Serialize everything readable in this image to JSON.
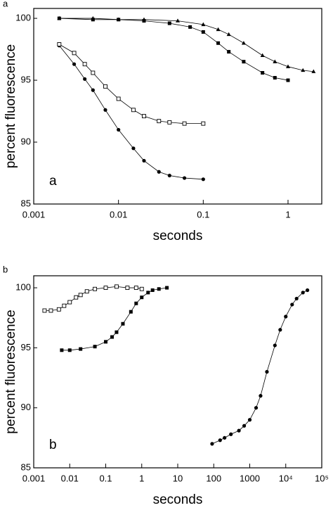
{
  "chart_data": [
    {
      "type": "scatter",
      "panel_label": "a",
      "inner_label": "a",
      "x_label": "seconds",
      "y_label": "percent fluorescence",
      "xscale": "log",
      "xlim": [
        0.001,
        2.5
      ],
      "xticks": [
        0.001,
        0.01,
        0.1,
        1
      ],
      "ylim": [
        85,
        100.8
      ],
      "yticks": [
        85,
        90,
        95,
        100
      ],
      "color": "#000000",
      "series": [
        {
          "marker": "filled-circle",
          "x": [
            0.002,
            0.003,
            0.004,
            0.005,
            0.007,
            0.01,
            0.015,
            0.02,
            0.03,
            0.04,
            0.06,
            0.1
          ],
          "values": [
            97.8,
            96.3,
            95.1,
            94.2,
            92.6,
            91.0,
            89.5,
            88.5,
            87.6,
            87.3,
            87.1,
            87.0
          ]
        },
        {
          "marker": "open-square",
          "x": [
            0.002,
            0.003,
            0.004,
            0.005,
            0.007,
            0.01,
            0.015,
            0.02,
            0.03,
            0.04,
            0.06,
            0.1
          ],
          "values": [
            97.9,
            97.2,
            96.3,
            95.6,
            94.5,
            93.5,
            92.6,
            92.1,
            91.7,
            91.6,
            91.5,
            91.5
          ]
        },
        {
          "marker": "filled-square",
          "x": [
            0.002,
            0.005,
            0.01,
            0.02,
            0.04,
            0.07,
            0.1,
            0.15,
            0.2,
            0.3,
            0.5,
            0.7,
            1
          ],
          "values": [
            100,
            99.9,
            99.9,
            99.8,
            99.6,
            99.3,
            98.9,
            98.0,
            97.3,
            96.5,
            95.6,
            95.2,
            95.0
          ]
        },
        {
          "marker": "triangle",
          "x": [
            0.002,
            0.005,
            0.01,
            0.02,
            0.05,
            0.1,
            0.15,
            0.2,
            0.3,
            0.5,
            0.7,
            1,
            1.5,
            2
          ],
          "values": [
            100,
            100,
            99.9,
            99.9,
            99.8,
            99.5,
            99.1,
            98.7,
            98.0,
            97.0,
            96.5,
            96.1,
            95.8,
            95.7
          ]
        }
      ]
    },
    {
      "type": "scatter",
      "panel_label": "b",
      "inner_label": "b",
      "x_label": "seconds",
      "y_label": "percent fluorescence",
      "xscale": "log",
      "xlim": [
        0.001,
        100000
      ],
      "xticks": [
        0.001,
        0.01,
        0.1,
        1,
        10,
        100,
        1000,
        {
          "value": 10000,
          "label": "10⁴"
        },
        {
          "value": 100000,
          "label": "10⁵"
        }
      ],
      "ylim": [
        85,
        101
      ],
      "yticks": [
        85,
        90,
        95,
        100
      ],
      "color": "#000000",
      "series": [
        {
          "marker": "open-square",
          "x": [
            0.002,
            0.003,
            0.005,
            0.007,
            0.01,
            0.015,
            0.02,
            0.03,
            0.05,
            0.1,
            0.2,
            0.4,
            0.7,
            1
          ],
          "values": [
            98.1,
            98.1,
            98.2,
            98.5,
            98.8,
            99.2,
            99.4,
            99.7,
            99.9,
            100,
            100.1,
            100,
            100,
            99.9
          ]
        },
        {
          "marker": "filled-square",
          "x": [
            0.006,
            0.01,
            0.02,
            0.05,
            0.1,
            0.15,
            0.2,
            0.3,
            0.5,
            0.7,
            1,
            1.5,
            2,
            3,
            5
          ],
          "values": [
            94.8,
            94.8,
            94.9,
            95.1,
            95.5,
            95.9,
            96.3,
            97.0,
            98.0,
            98.7,
            99.2,
            99.6,
            99.8,
            99.9,
            100
          ]
        },
        {
          "marker": "filled-circle",
          "x": [
            90,
            150,
            200,
            300,
            500,
            700,
            1000,
            1500,
            2000,
            3000,
            5000,
            7000,
            10000,
            15000,
            20000,
            30000,
            40000
          ],
          "values": [
            87.0,
            87.3,
            87.5,
            87.8,
            88.1,
            88.5,
            89.0,
            90.0,
            91.0,
            93.0,
            95.2,
            96.5,
            97.6,
            98.6,
            99.1,
            99.6,
            99.8
          ]
        }
      ]
    }
  ]
}
